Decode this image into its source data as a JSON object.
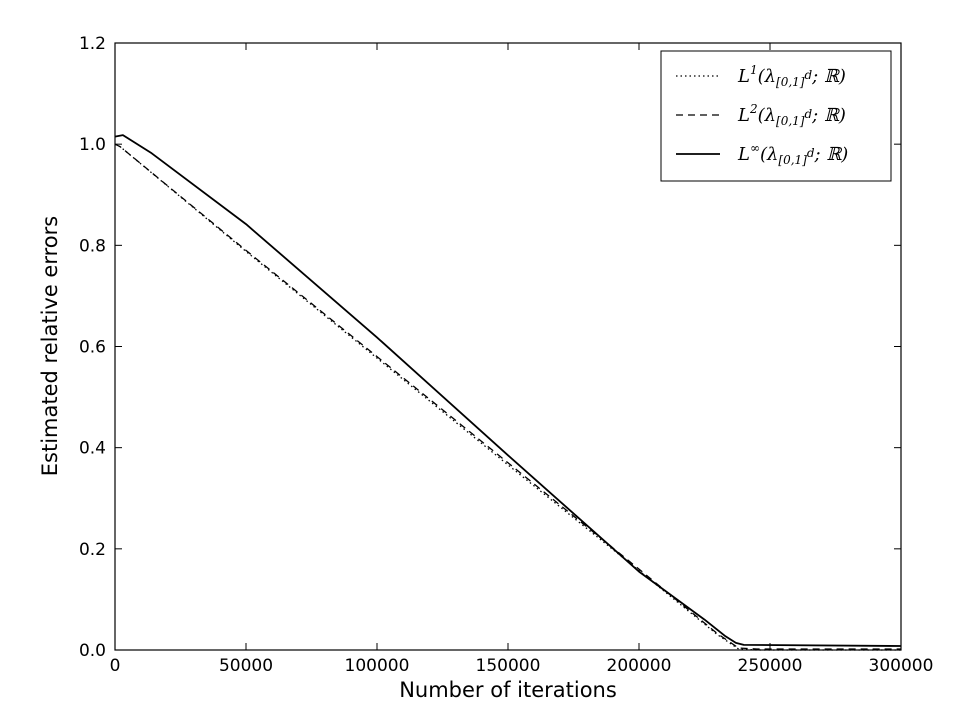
{
  "chart_data": {
    "type": "line",
    "title": "",
    "xlabel": "Number of iterations",
    "ylabel": "Estimated relative errors",
    "xlim": [
      0,
      300000
    ],
    "ylim": [
      0.0,
      1.2
    ],
    "x_ticks": [
      "0",
      "50000",
      "100000",
      "150000",
      "200000",
      "250000",
      "300000"
    ],
    "y_ticks": [
      "0.0",
      "0.2",
      "0.4",
      "0.6",
      "0.8",
      "1.0",
      "1.2"
    ],
    "grid": false,
    "legend_position": "top-right",
    "series": [
      {
        "name": "L1",
        "legend": {
          "base": "L",
          "sup": "1",
          "body": "(λ",
          "sub": "[0,1]",
          "subsup": "d",
          "tail": "; ℝ)"
        },
        "style": "dotted",
        "x": [
          0,
          2000,
          50000,
          100000,
          150000,
          200000,
          230000,
          238000,
          245000,
          300000
        ],
        "y": [
          1.0,
          0.995,
          0.788,
          0.577,
          0.366,
          0.157,
          0.03,
          0.002,
          0.0,
          0.0
        ]
      },
      {
        "name": "L2",
        "legend": {
          "base": "L",
          "sup": "2",
          "body": "(λ",
          "sub": "[0,1]",
          "subsup": "d",
          "tail": "; ℝ)"
        },
        "style": "dashed",
        "x": [
          0,
          2000,
          50000,
          100000,
          150000,
          200000,
          230000,
          238000,
          245000,
          300000
        ],
        "y": [
          1.0,
          0.995,
          0.79,
          0.58,
          0.37,
          0.16,
          0.032,
          0.004,
          0.002,
          0.002
        ]
      },
      {
        "name": "L∞",
        "legend": {
          "base": "L",
          "sup": "∞",
          "body": "(λ",
          "sub": "[0,1]",
          "subsup": "d",
          "tail": "; ℝ)"
        },
        "style": "solid",
        "x": [
          0,
          3000,
          14000,
          50000,
          100000,
          150000,
          200000,
          225000,
          233000,
          237000,
          240000,
          300000
        ],
        "y": [
          1.015,
          1.018,
          0.982,
          0.842,
          0.618,
          0.385,
          0.155,
          0.06,
          0.027,
          0.014,
          0.01,
          0.008
        ]
      }
    ]
  }
}
